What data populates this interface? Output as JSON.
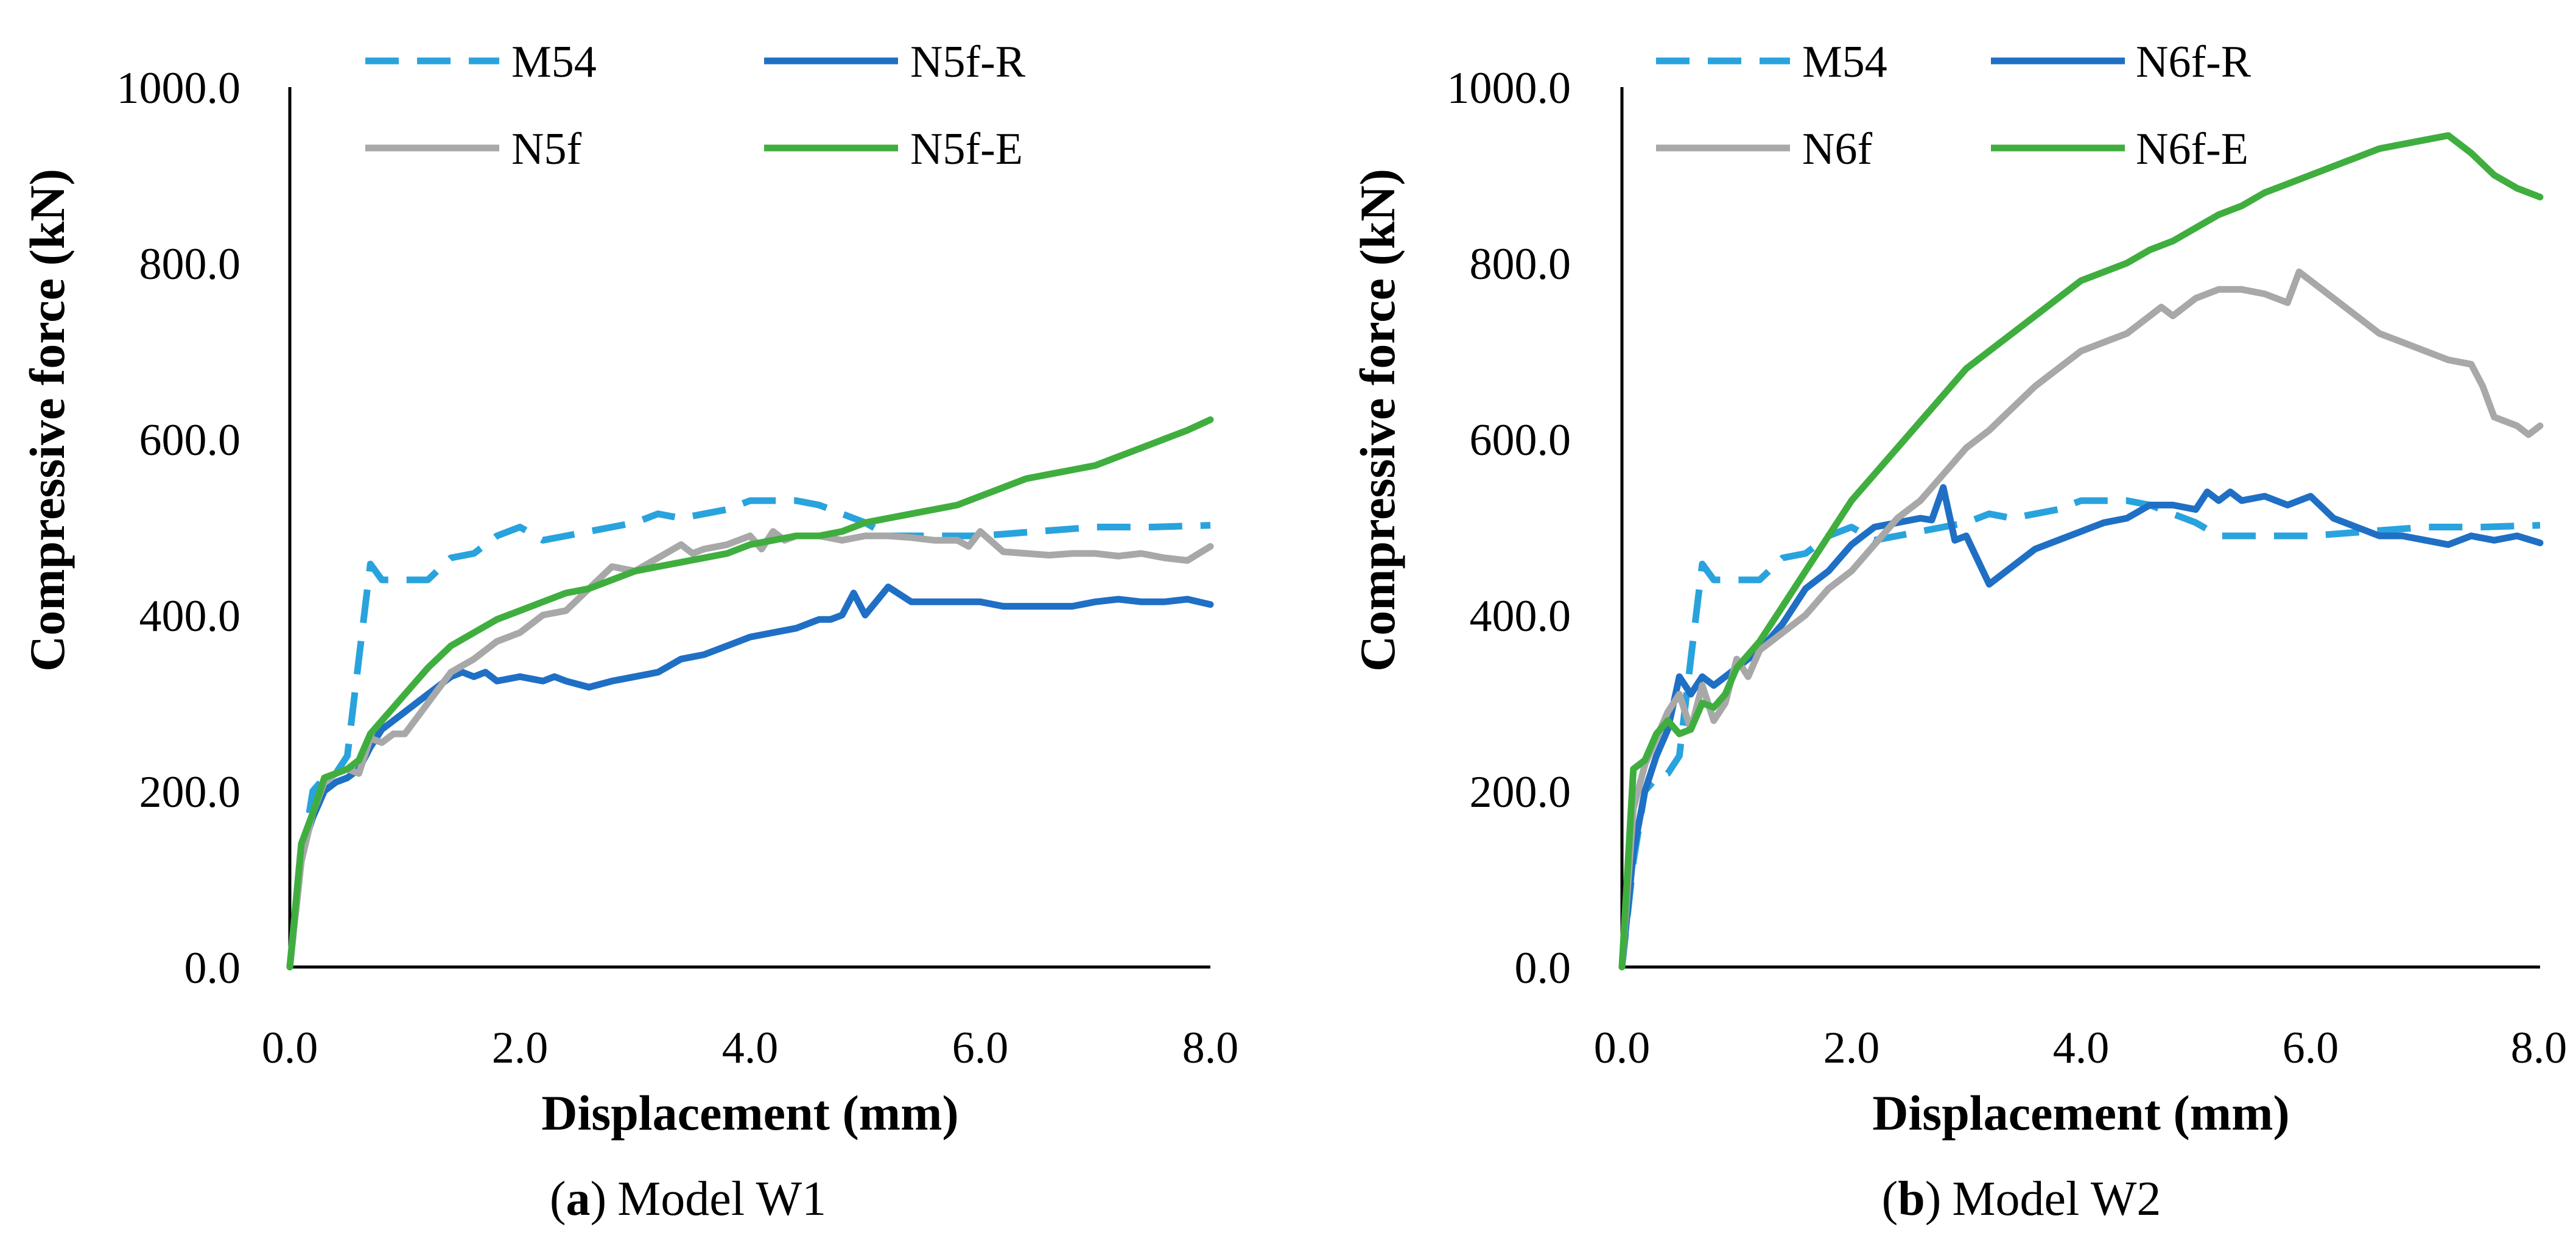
{
  "chart_data": [
    {
      "id": "W1",
      "type": "line",
      "caption_letter": "a",
      "caption_text": "Model W1",
      "xlabel": "Displacement (mm)",
      "ylabel": "Compressive force (kN)",
      "xlim": [
        0,
        8
      ],
      "ylim": [
        0,
        1000
      ],
      "x_ticks": [
        0,
        2,
        4,
        6,
        8
      ],
      "y_ticks": [
        0,
        200,
        400,
        600,
        800,
        1000
      ],
      "x_tick_labels": [
        "0.0",
        "2.0",
        "4.0",
        "6.0",
        "8.0"
      ],
      "y_tick_labels": [
        "0.0",
        "200.0",
        "400.0",
        "600.0",
        "800.0",
        "1000.0"
      ],
      "legend_position": "top",
      "series": [
        {
          "name": "M54",
          "color": "#29a3dd",
          "style": "dashed",
          "x": [
            0,
            0.1,
            0.2,
            0.3,
            0.4,
            0.5,
            0.6,
            0.7,
            0.8,
            1.0,
            1.2,
            1.4,
            1.6,
            1.8,
            2.0,
            2.2,
            2.4,
            2.6,
            2.8,
            3.0,
            3.2,
            3.4,
            3.6,
            3.8,
            4.0,
            4.2,
            4.4,
            4.6,
            4.8,
            5.0,
            5.2,
            5.4,
            5.6,
            5.8,
            6.0,
            6.5,
            7.0,
            7.5,
            8.0
          ],
          "y": [
            0,
            120,
            200,
            215,
            220,
            240,
            350,
            458,
            440,
            440,
            440,
            465,
            470,
            490,
            500,
            485,
            490,
            495,
            500,
            505,
            515,
            510,
            515,
            520,
            530,
            530,
            530,
            525,
            515,
            505,
            490,
            490,
            490,
            490,
            490,
            495,
            500,
            500,
            502
          ]
        },
        {
          "name": "N5f-R",
          "color": "#1f6fc5",
          "style": "solid",
          "x": [
            0,
            0.1,
            0.2,
            0.3,
            0.4,
            0.5,
            0.6,
            0.7,
            0.8,
            1.0,
            1.2,
            1.4,
            1.5,
            1.6,
            1.7,
            1.8,
            2.0,
            2.2,
            2.3,
            2.4,
            2.6,
            2.8,
            3.0,
            3.2,
            3.4,
            3.6,
            3.8,
            4.0,
            4.2,
            4.4,
            4.6,
            4.7,
            4.8,
            4.9,
            5.0,
            5.2,
            5.4,
            5.6,
            5.8,
            6.0,
            6.2,
            6.4,
            6.6,
            6.8,
            7.0,
            7.2,
            7.4,
            7.6,
            7.8,
            8.0
          ],
          "y": [
            0,
            130,
            170,
            200,
            210,
            215,
            225,
            250,
            270,
            290,
            310,
            330,
            335,
            330,
            335,
            325,
            330,
            325,
            330,
            325,
            318,
            325,
            330,
            335,
            350,
            355,
            365,
            375,
            380,
            385,
            395,
            395,
            400,
            425,
            400,
            432,
            415,
            415,
            415,
            415,
            410,
            410,
            410,
            410,
            415,
            418,
            415,
            415,
            418,
            412
          ]
        },
        {
          "name": "N5f",
          "color": "#a8a8a8",
          "style": "solid",
          "x": [
            0,
            0.1,
            0.2,
            0.3,
            0.4,
            0.5,
            0.6,
            0.7,
            0.8,
            0.9,
            1.0,
            1.2,
            1.4,
            1.6,
            1.8,
            2.0,
            2.2,
            2.4,
            2.6,
            2.8,
            3.0,
            3.2,
            3.4,
            3.5,
            3.6,
            3.8,
            4.0,
            4.1,
            4.2,
            4.3,
            4.4,
            4.6,
            4.8,
            5.0,
            5.2,
            5.4,
            5.6,
            5.8,
            5.9,
            6.0,
            6.2,
            6.4,
            6.6,
            6.8,
            7.0,
            7.2,
            7.4,
            7.6,
            7.8,
            8.0
          ],
          "y": [
            0,
            120,
            175,
            210,
            220,
            225,
            220,
            260,
            255,
            265,
            265,
            300,
            335,
            350,
            370,
            380,
            400,
            405,
            430,
            455,
            450,
            465,
            480,
            470,
            475,
            480,
            490,
            475,
            495,
            485,
            490,
            490,
            485,
            490,
            490,
            488,
            485,
            485,
            478,
            495,
            472,
            470,
            468,
            470,
            470,
            467,
            470,
            465,
            462,
            478
          ]
        },
        {
          "name": "N5f-E",
          "color": "#3fae3f",
          "style": "solid",
          "x": [
            0,
            0.1,
            0.2,
            0.3,
            0.4,
            0.5,
            0.6,
            0.7,
            0.8,
            1.0,
            1.2,
            1.4,
            1.6,
            1.8,
            2.0,
            2.2,
            2.4,
            2.6,
            2.8,
            3.0,
            3.2,
            3.4,
            3.6,
            3.8,
            4.0,
            4.2,
            4.4,
            4.6,
            4.8,
            5.0,
            5.2,
            5.4,
            5.6,
            5.8,
            6.0,
            6.2,
            6.4,
            6.6,
            6.8,
            7.0,
            7.2,
            7.4,
            7.6,
            7.8,
            8.0
          ],
          "y": [
            0,
            140,
            175,
            215,
            220,
            225,
            235,
            265,
            280,
            310,
            340,
            365,
            380,
            395,
            405,
            415,
            425,
            430,
            440,
            450,
            455,
            460,
            465,
            470,
            480,
            485,
            490,
            490,
            495,
            505,
            510,
            515,
            520,
            525,
            535,
            545,
            555,
            560,
            565,
            570,
            580,
            590,
            600,
            610,
            622
          ]
        }
      ]
    },
    {
      "id": "W2",
      "type": "line",
      "caption_letter": "b",
      "caption_text": "Model W2",
      "xlabel": "Displacement (mm)",
      "ylabel": "Compressive force (kN)",
      "xlim": [
        0,
        8
      ],
      "ylim": [
        0,
        1000
      ],
      "x_ticks": [
        0,
        2,
        4,
        6,
        8
      ],
      "y_ticks": [
        0,
        200,
        400,
        600,
        800,
        1000
      ],
      "x_tick_labels": [
        "0.0",
        "2.0",
        "4.0",
        "6.0",
        "8.0"
      ],
      "y_tick_labels": [
        "0.0",
        "200.0",
        "400.0",
        "600.0",
        "800.0",
        "1000.0"
      ],
      "legend_position": "top",
      "series": [
        {
          "name": "M54",
          "color": "#29a3dd",
          "style": "dashed",
          "x": [
            0,
            0.1,
            0.2,
            0.3,
            0.4,
            0.5,
            0.6,
            0.7,
            0.8,
            1.0,
            1.2,
            1.4,
            1.6,
            1.8,
            2.0,
            2.2,
            2.4,
            2.6,
            2.8,
            3.0,
            3.2,
            3.4,
            3.6,
            3.8,
            4.0,
            4.2,
            4.4,
            4.6,
            4.8,
            5.0,
            5.2,
            5.4,
            5.6,
            5.8,
            6.0,
            6.5,
            7.0,
            7.5,
            8.0
          ],
          "y": [
            0,
            120,
            200,
            215,
            220,
            240,
            350,
            458,
            440,
            440,
            440,
            465,
            470,
            490,
            500,
            485,
            490,
            495,
            500,
            505,
            515,
            510,
            515,
            520,
            530,
            530,
            530,
            525,
            515,
            505,
            490,
            490,
            490,
            490,
            490,
            495,
            500,
            500,
            502
          ]
        },
        {
          "name": "N6f-R",
          "color": "#1f6fc5",
          "style": "solid",
          "x": [
            0,
            0.1,
            0.2,
            0.3,
            0.4,
            0.5,
            0.6,
            0.7,
            0.8,
            1.0,
            1.2,
            1.4,
            1.6,
            1.8,
            2.0,
            2.2,
            2.4,
            2.6,
            2.7,
            2.8,
            2.9,
            3.0,
            3.2,
            3.4,
            3.6,
            3.8,
            4.0,
            4.2,
            4.4,
            4.6,
            4.8,
            5.0,
            5.1,
            5.2,
            5.3,
            5.4,
            5.6,
            5.8,
            6.0,
            6.2,
            6.4,
            6.6,
            6.8,
            7.0,
            7.2,
            7.4,
            7.6,
            7.8,
            8.0
          ],
          "y": [
            0,
            130,
            200,
            240,
            270,
            330,
            310,
            330,
            320,
            340,
            360,
            390,
            430,
            450,
            480,
            500,
            505,
            510,
            508,
            545,
            485,
            490,
            435,
            455,
            475,
            485,
            495,
            505,
            510,
            525,
            525,
            520,
            540,
            530,
            540,
            530,
            535,
            525,
            535,
            510,
            500,
            490,
            490,
            485,
            480,
            490,
            485,
            490,
            482
          ]
        },
        {
          "name": "N6f",
          "color": "#a8a8a8",
          "style": "solid",
          "x": [
            0,
            0.1,
            0.2,
            0.3,
            0.4,
            0.5,
            0.6,
            0.7,
            0.8,
            0.9,
            1.0,
            1.1,
            1.2,
            1.4,
            1.6,
            1.8,
            2.0,
            2.2,
            2.4,
            2.6,
            2.8,
            3.0,
            3.2,
            3.4,
            3.6,
            3.8,
            4.0,
            4.2,
            4.4,
            4.6,
            4.7,
            4.8,
            5.0,
            5.2,
            5.4,
            5.6,
            5.8,
            5.9,
            6.0,
            6.1,
            6.2,
            6.4,
            6.6,
            6.8,
            7.0,
            7.2,
            7.4,
            7.5,
            7.6,
            7.8,
            7.9,
            8.0
          ],
          "y": [
            0,
            180,
            230,
            260,
            290,
            310,
            270,
            320,
            280,
            300,
            350,
            330,
            360,
            380,
            400,
            430,
            450,
            480,
            510,
            530,
            560,
            590,
            610,
            635,
            660,
            680,
            700,
            710,
            720,
            740,
            750,
            740,
            760,
            770,
            770,
            765,
            755,
            790,
            780,
            770,
            760,
            740,
            720,
            710,
            700,
            690,
            685,
            660,
            625,
            615,
            605,
            615
          ]
        },
        {
          "name": "N6f-E",
          "color": "#3fae3f",
          "style": "solid",
          "x": [
            0,
            0.1,
            0.2,
            0.3,
            0.4,
            0.5,
            0.6,
            0.7,
            0.8,
            0.9,
            1.0,
            1.2,
            1.4,
            1.6,
            1.8,
            2.0,
            2.2,
            2.4,
            2.6,
            2.8,
            3.0,
            3.2,
            3.4,
            3.6,
            3.8,
            4.0,
            4.2,
            4.4,
            4.6,
            4.8,
            5.0,
            5.2,
            5.4,
            5.6,
            5.8,
            6.0,
            6.2,
            6.4,
            6.6,
            6.8,
            7.0,
            7.2,
            7.4,
            7.6,
            7.8,
            8.0
          ],
          "y": [
            0,
            225,
            235,
            265,
            280,
            265,
            270,
            300,
            295,
            310,
            340,
            370,
            410,
            450,
            490,
            530,
            560,
            590,
            620,
            650,
            680,
            700,
            720,
            740,
            760,
            780,
            790,
            800,
            815,
            825,
            840,
            855,
            865,
            880,
            890,
            900,
            910,
            920,
            930,
            935,
            940,
            945,
            925,
            900,
            885,
            875
          ]
        }
      ]
    }
  ]
}
